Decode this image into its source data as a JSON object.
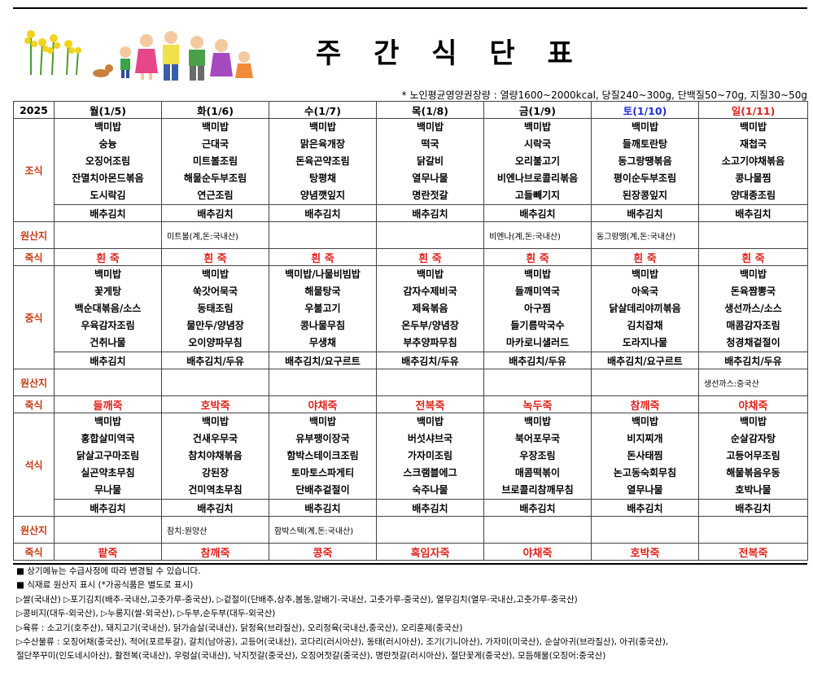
{
  "title": "주 간 식 단 표",
  "note": "* 노인평균영양권장량 : 열량1600~2000kcal, 당질240~300g, 단백질50~70g, 지질30~50g",
  "year": "2025",
  "days": [
    "월(1/5)",
    "화(1/6)",
    "수(1/7)",
    "목(1/8)",
    "금(1/9)",
    "토(1/10)",
    "일(1/11)"
  ],
  "labels": {
    "breakfast": "조식",
    "lunch": "중식",
    "dinner": "석식",
    "origin": "원산지",
    "juk": "죽식"
  },
  "breakfast": [
    [
      "백미밥",
      "숭늉",
      "오징어조림",
      "잔멸치아몬드볶음",
      "도시락김",
      "배추김치"
    ],
    [
      "백미밥",
      "근대국",
      "미트볼조림",
      "해물순두부조림",
      "연근조림",
      "배추김치"
    ],
    [
      "백미밥",
      "맑은육개장",
      "돈육곤약조림",
      "탕평채",
      "양념깻잎지",
      "배추김치"
    ],
    [
      "백미밥",
      "떡국",
      "닭갈비",
      "열무나물",
      "명란젓갈",
      "배추김치"
    ],
    [
      "백미밥",
      "시락국",
      "오리불고기",
      "비엔나브로콜리볶음",
      "고들빼기지",
      "배추김치"
    ],
    [
      "백미밥",
      "들깨토란탕",
      "동그랑땡볶음",
      "평이순두부조림",
      "된장콩잎지",
      "배추김치"
    ],
    [
      "백미밥",
      "재첩국",
      "소고기야채볶음",
      "콩나물찜",
      "양대종조림",
      "배추김치"
    ]
  ],
  "breakfast_origin": [
    "",
    "미트볼(계,돈:국내산)",
    "",
    "",
    "비엔나(계,돈:국내산)",
    "동그랑땡(계,돈:국내산)",
    ""
  ],
  "juk1": [
    "흰 죽",
    "흰 죽",
    "흰 죽",
    "흰 죽",
    "흰 죽",
    "흰 죽",
    "흰 죽"
  ],
  "lunch": [
    [
      "백미밥",
      "꽃게탕",
      "백순대볶음/소스",
      "우육감자조림",
      "건취나물",
      "배추김치"
    ],
    [
      "백미밥",
      "쑥갓어묵국",
      "동태조림",
      "물만두/양념장",
      "오이양파무침",
      "배추김치/두유"
    ],
    [
      "백미밥/나물비빔밥",
      "해물탕국",
      "우불고기",
      "콩나물무침",
      "무생채",
      "배추김치/요구르트"
    ],
    [
      "백미밥",
      "감자수제비국",
      "제육볶음",
      "온두부/양념장",
      "부추양파무침",
      "배추김치/두유"
    ],
    [
      "백미밥",
      "들깨미역국",
      "아구찜",
      "들기름막국수",
      "마카로니샐러드",
      "배추김치/두유"
    ],
    [
      "백미밥",
      "아욱국",
      "닭살데리야끼볶음",
      "김치잡채",
      "도라지나물",
      "배추김치/요구르트"
    ],
    [
      "백미밥",
      "돈육짬뽕국",
      "생선까스/소스",
      "매콤감자조림",
      "청경채겉절이",
      "배추김치/두유"
    ]
  ],
  "lunch_origin": [
    "",
    "",
    "",
    "",
    "",
    "",
    "생선까스:중국산"
  ],
  "juk2": [
    "들깨죽",
    "호박죽",
    "야채죽",
    "전복죽",
    "녹두죽",
    "참깨죽",
    "야채죽"
  ],
  "dinner": [
    [
      "백미밥",
      "홍합살미역국",
      "닭살고구마조림",
      "실곤약초무침",
      "무나물",
      "배추김치"
    ],
    [
      "백미밥",
      "건새우무국",
      "참치야채볶음",
      "강된장",
      "건미역초무침",
      "배추김치"
    ],
    [
      "백미밥",
      "유부팽이장국",
      "함박스테이크조림",
      "토마토스파게티",
      "단배추겉절이",
      "배추김치"
    ],
    [
      "백미밥",
      "버섯샤브국",
      "가자미조림",
      "스크램블에그",
      "숙주나물",
      "배추김치"
    ],
    [
      "백미밥",
      "북어포무국",
      "우장조림",
      "매콤떡볶이",
      "브로콜리참깨무침",
      "배추김치"
    ],
    [
      "백미밥",
      "비지찌개",
      "돈사태찜",
      "논고동숙회무침",
      "열무나물",
      "배추김치"
    ],
    [
      "백미밥",
      "순살감자탕",
      "고등어무조림",
      "해물볶음우동",
      "호박나물",
      "배추김치"
    ]
  ],
  "dinner_origin": [
    "",
    "참치:원양산",
    "함박스텍(계,돈:국내산)",
    "",
    "",
    "",
    ""
  ],
  "juk3": [
    "팥죽",
    "참깨죽",
    "콩죽",
    "흑임자죽",
    "야채죽",
    "호박죽",
    "전복죽"
  ],
  "footer": [
    "■ 상기메뉴는 수급사정에 따라 변경될 수 있습니다.",
    "■ 식재료 원산지 표시 (*가공식품은 별도로 표시)",
    "▷쌀(국내산) ▷포기김치(배추-국내산,고춧가루-중국산), ▷겉절이(단배추,상추,봄동,알배기-국내산, 고춧가루-중국산), 열무김치(열무-국내산,고춧가루-중국산)",
    "▷콩비지(대두-외국산), ▷누룽지(쌀-외국산), ▷두부,순두부(대두-외국산)",
    "▷육류 : 소고기(호주산), 돼지고기(국내산), 닭가슴살(국내산), 닭정육(브라질산), 오리정육(국내산,중국산), 오리훈제(중국산)",
    "▷수산물류 : 오징어채(중국산), 적어(포르투갈), 갈치(남아공), 고등어(국내산), 코다리(러시아산), 동태(러시아산), 조기(기니아산), 가자미(미국산), 순살아귀(브라질산), 아귀(중국산),",
    "절단쭈꾸미(인도네시아산), 활전복(국내산), 우렁살(국내산), 낙지젓갈(중국산), 오징어젓갈(중국산), 명란젓갈(러시아산), 절단꽃게(중국산), 모듬해물(오징어:중국산)"
  ]
}
